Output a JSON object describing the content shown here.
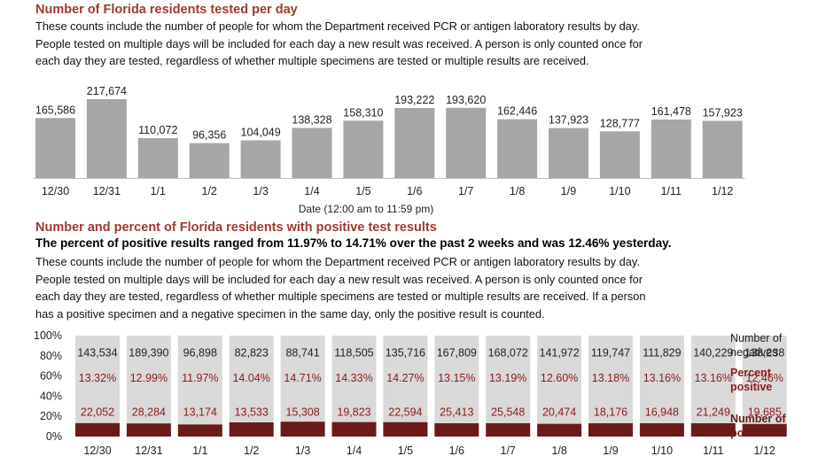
{
  "section1": {
    "title": "Number of Florida residents tested per day",
    "description": [
      "These counts include the number of people for whom the Department received PCR or antigen laboratory results by day.",
      "People tested on multiple days will be included for each day a new result was received. A person is only counted once for",
      "each day they are tested, regardless of whether multiple specimens are tested or multiple results are received."
    ]
  },
  "section2": {
    "title": "Number and percent of Florida residents with positive test results",
    "summary": "The percent of positive results ranged from 11.97% to 14.71% over the past 2 weeks and was 12.46% yesterday.",
    "description": [
      "These counts include the number of people for whom the Department received PCR or antigen laboratory results by day.",
      "People tested on multiple days will be included for each day a new result was received. A person is only counted once for",
      "each day they are tested, regardless of whether multiple specimens are tested or multiple results are received. If a person",
      "has a positive specimen and a negative specimen in the same day, only the positive result is counted."
    ]
  },
  "colors": {
    "title": "#a03a2e",
    "tested_bar": "#a6a6a6",
    "negatives": "#d9d9d9",
    "positives": "#6b1a1a",
    "percent_text": "#8b1a1a"
  },
  "chart_data": [
    {
      "type": "bar",
      "categories": [
        "12/30",
        "12/31",
        "1/1",
        "1/2",
        "1/3",
        "1/4",
        "1/5",
        "1/6",
        "1/7",
        "1/8",
        "1/9",
        "1/10",
        "1/11",
        "1/12"
      ],
      "values": [
        165586,
        217674,
        110072,
        96356,
        104049,
        138328,
        158310,
        193222,
        193620,
        162446,
        137923,
        128777,
        161478,
        157923
      ],
      "value_labels": [
        "165,586",
        "217,674",
        "110,072",
        "96,356",
        "104,049",
        "138,328",
        "158,310",
        "193,222",
        "193,620",
        "162,446",
        "137,923",
        "128,777",
        "161,478",
        "157,923"
      ],
      "xlabel": "Date (12:00 am to 11:59 pm)",
      "ylabel": "",
      "ylim": [
        0,
        217674
      ],
      "grid": false
    },
    {
      "type": "bar",
      "stacked": "percent",
      "categories": [
        "12/30",
        "12/31",
        "1/1",
        "1/2",
        "1/3",
        "1/4",
        "1/5",
        "1/6",
        "1/7",
        "1/8",
        "1/9",
        "1/10",
        "1/11",
        "1/12"
      ],
      "yticks": [
        "0%",
        "20%",
        "40%",
        "60%",
        "80%",
        "100%"
      ],
      "ylim": [
        0,
        100
      ],
      "legend_position": "right",
      "series": [
        {
          "name": "Number of negatives",
          "legend_lines": [
            "Number of",
            "negatives"
          ],
          "values": [
            143534,
            189390,
            96898,
            82823,
            88741,
            118505,
            135716,
            167809,
            168072,
            141972,
            119747,
            111829,
            140229,
            138238
          ],
          "labels": [
            "143,534",
            "189,390",
            "96,898",
            "82,823",
            "88,741",
            "118,505",
            "135,716",
            "167,809",
            "168,072",
            "141,972",
            "119,747",
            "111,829",
            "140,229",
            "138,238"
          ]
        },
        {
          "name": "Number of positives",
          "legend_lines": [
            "Number of",
            "positives"
          ],
          "values": [
            22052,
            28284,
            13174,
            13533,
            15308,
            19823,
            22594,
            25413,
            25548,
            20474,
            18176,
            16948,
            21249,
            19685
          ],
          "labels": [
            "22,052",
            "28,284",
            "13,174",
            "13,533",
            "15,308",
            "19,823",
            "22,594",
            "25,413",
            "25,548",
            "20,474",
            "18,176",
            "16,948",
            "21,249",
            "19,685"
          ]
        }
      ],
      "percent_positive": {
        "name": "Percent positive",
        "legend_lines": [
          "Percent",
          "positive"
        ],
        "values": [
          13.32,
          12.99,
          11.97,
          14.04,
          14.71,
          14.33,
          14.27,
          13.15,
          13.19,
          12.6,
          13.18,
          13.16,
          13.16,
          12.46
        ],
        "labels": [
          "13.32%",
          "12.99%",
          "11.97%",
          "14.04%",
          "14.71%",
          "14.33%",
          "14.27%",
          "13.15%",
          "13.19%",
          "12.60%",
          "13.18%",
          "13.16%",
          "13.16%",
          "12.46%"
        ]
      }
    }
  ]
}
